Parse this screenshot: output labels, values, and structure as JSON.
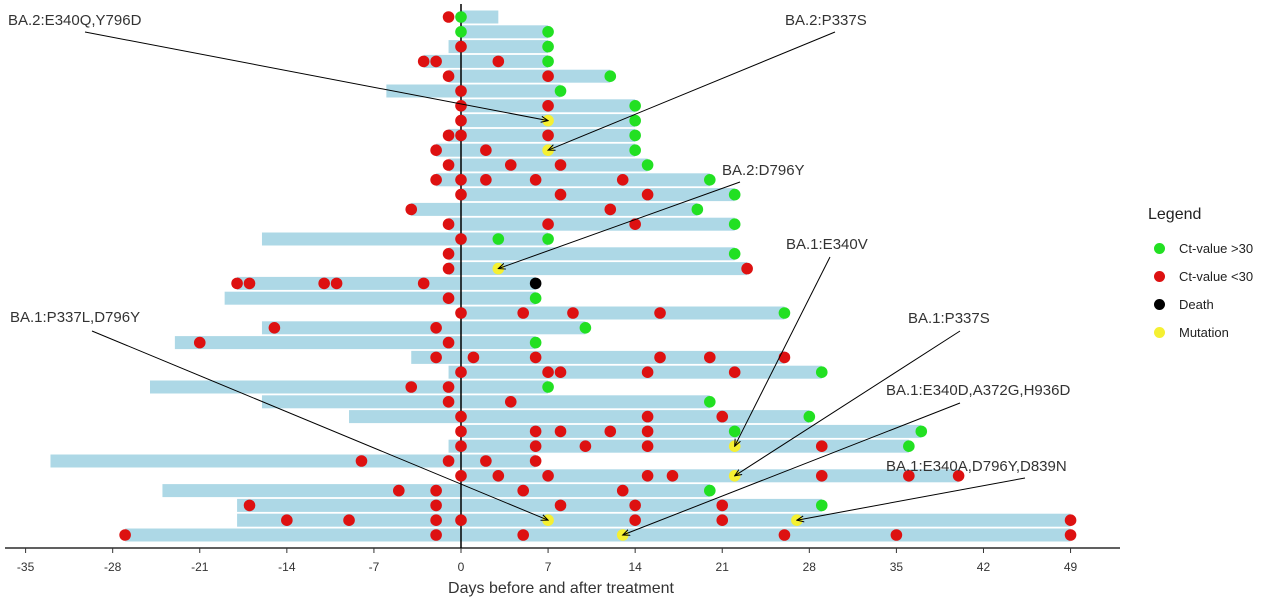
{
  "chart_data": {
    "type": "swimmer",
    "xlabel": "Days before and after treatment",
    "xlim": [
      -36,
      53
    ],
    "xticks": [
      -35,
      -28,
      -21,
      -14,
      -7,
      0,
      7,
      14,
      21,
      28,
      35,
      42,
      49
    ],
    "reference_line_x": 0,
    "grid": false,
    "legend": {
      "title": "Legend",
      "placement": "right",
      "items": [
        {
          "key": "g",
          "label": "Ct-value >30",
          "color": "#22e022"
        },
        {
          "key": "r",
          "label": "Ct-value <30",
          "color": "#dd1111"
        },
        {
          "key": "b",
          "label": "Death",
          "color": "#000000"
        },
        {
          "key": "y",
          "label": "Mutation",
          "color": "#f5f032"
        }
      ]
    },
    "bar_color": "#add8e6",
    "rows": [
      {
        "start": 0,
        "end": 3,
        "events": [
          [
            -1,
            "r"
          ],
          [
            0,
            "g"
          ]
        ]
      },
      {
        "start": 0,
        "end": 7,
        "events": [
          [
            0,
            "g"
          ],
          [
            7,
            "g"
          ]
        ]
      },
      {
        "start": -1,
        "end": 7,
        "events": [
          [
            0,
            "r"
          ],
          [
            7,
            "g"
          ]
        ]
      },
      {
        "start": -3,
        "end": 7,
        "events": [
          [
            -3,
            "r"
          ],
          [
            -2,
            "r"
          ],
          [
            3,
            "r"
          ],
          [
            7,
            "g"
          ]
        ]
      },
      {
        "start": -1,
        "end": 12,
        "events": [
          [
            -1,
            "r"
          ],
          [
            7,
            "r"
          ],
          [
            12,
            "g"
          ]
        ]
      },
      {
        "start": -6,
        "end": 8,
        "events": [
          [
            0,
            "r"
          ],
          [
            8,
            "g"
          ]
        ]
      },
      {
        "start": 0,
        "end": 14,
        "events": [
          [
            0,
            "r"
          ],
          [
            7,
            "r"
          ],
          [
            14,
            "g"
          ]
        ]
      },
      {
        "start": 0,
        "end": 14,
        "events": [
          [
            0,
            "r"
          ],
          [
            7,
            "y"
          ],
          [
            14,
            "g"
          ]
        ]
      },
      {
        "start": -1,
        "end": 14,
        "events": [
          [
            -1,
            "r"
          ],
          [
            0,
            "r"
          ],
          [
            7,
            "r"
          ],
          [
            14,
            "g"
          ]
        ]
      },
      {
        "start": -2,
        "end": 14,
        "events": [
          [
            -2,
            "r"
          ],
          [
            2,
            "r"
          ],
          [
            7,
            "y"
          ],
          [
            14,
            "g"
          ]
        ]
      },
      {
        "start": -1,
        "end": 15,
        "events": [
          [
            -1,
            "r"
          ],
          [
            4,
            "r"
          ],
          [
            8,
            "r"
          ],
          [
            15,
            "g"
          ]
        ]
      },
      {
        "start": -2,
        "end": 20,
        "events": [
          [
            -2,
            "r"
          ],
          [
            0,
            "r"
          ],
          [
            2,
            "r"
          ],
          [
            6,
            "r"
          ],
          [
            13,
            "r"
          ],
          [
            20,
            "g"
          ]
        ]
      },
      {
        "start": 0,
        "end": 22,
        "events": [
          [
            0,
            "r"
          ],
          [
            8,
            "r"
          ],
          [
            15,
            "r"
          ],
          [
            22,
            "g"
          ]
        ]
      },
      {
        "start": -4,
        "end": 19,
        "events": [
          [
            -4,
            "r"
          ],
          [
            12,
            "r"
          ],
          [
            19,
            "g"
          ]
        ]
      },
      {
        "start": -1,
        "end": 22,
        "events": [
          [
            -1,
            "r"
          ],
          [
            7,
            "r"
          ],
          [
            14,
            "r"
          ],
          [
            22,
            "g"
          ]
        ]
      },
      {
        "start": -16,
        "end": 7,
        "events": [
          [
            0,
            "r"
          ],
          [
            3,
            "g"
          ],
          [
            7,
            "g"
          ]
        ]
      },
      {
        "start": -1,
        "end": 22,
        "events": [
          [
            -1,
            "r"
          ],
          [
            22,
            "g"
          ]
        ]
      },
      {
        "start": -1,
        "end": 23,
        "events": [
          [
            -1,
            "r"
          ],
          [
            3,
            "y"
          ],
          [
            23,
            "r"
          ]
        ]
      },
      {
        "start": -18,
        "end": 6,
        "events": [
          [
            -18,
            "r"
          ],
          [
            -17,
            "r"
          ],
          [
            -11,
            "r"
          ],
          [
            -10,
            "r"
          ],
          [
            -3,
            "r"
          ],
          [
            6,
            "b"
          ]
        ]
      },
      {
        "start": -19,
        "end": 6,
        "events": [
          [
            -1,
            "r"
          ],
          [
            6,
            "g"
          ]
        ]
      },
      {
        "start": 0,
        "end": 26,
        "events": [
          [
            0,
            "r"
          ],
          [
            5,
            "r"
          ],
          [
            9,
            "r"
          ],
          [
            16,
            "r"
          ],
          [
            26,
            "g"
          ]
        ]
      },
      {
        "start": -16,
        "end": 10,
        "events": [
          [
            -15,
            "r"
          ],
          [
            -2,
            "r"
          ],
          [
            10,
            "g"
          ]
        ]
      },
      {
        "start": -23,
        "end": 6,
        "events": [
          [
            -21,
            "r"
          ],
          [
            -1,
            "r"
          ],
          [
            6,
            "g"
          ]
        ]
      },
      {
        "start": -4,
        "end": 26,
        "events": [
          [
            -2,
            "r"
          ],
          [
            1,
            "r"
          ],
          [
            6,
            "r"
          ],
          [
            16,
            "r"
          ],
          [
            20,
            "r"
          ],
          [
            26,
            "r"
          ]
        ]
      },
      {
        "start": -1,
        "end": 29,
        "events": [
          [
            0,
            "r"
          ],
          [
            7,
            "r"
          ],
          [
            8,
            "r"
          ],
          [
            15,
            "r"
          ],
          [
            22,
            "r"
          ],
          [
            29,
            "g"
          ]
        ]
      },
      {
        "start": -25,
        "end": 7,
        "events": [
          [
            -4,
            "r"
          ],
          [
            -1,
            "r"
          ],
          [
            7,
            "g"
          ]
        ]
      },
      {
        "start": -16,
        "end": 20,
        "events": [
          [
            -1,
            "r"
          ],
          [
            4,
            "r"
          ],
          [
            20,
            "g"
          ]
        ]
      },
      {
        "start": -9,
        "end": 28,
        "events": [
          [
            0,
            "r"
          ],
          [
            15,
            "r"
          ],
          [
            21,
            "r"
          ],
          [
            28,
            "g"
          ]
        ]
      },
      {
        "start": 0,
        "end": 37,
        "events": [
          [
            0,
            "r"
          ],
          [
            6,
            "r"
          ],
          [
            8,
            "r"
          ],
          [
            12,
            "r"
          ],
          [
            15,
            "r"
          ],
          [
            22,
            "g"
          ],
          [
            37,
            "g"
          ]
        ]
      },
      {
        "start": -1,
        "end": 36,
        "events": [
          [
            0,
            "r"
          ],
          [
            6,
            "r"
          ],
          [
            10,
            "r"
          ],
          [
            15,
            "r"
          ],
          [
            22,
            "y"
          ],
          [
            29,
            "r"
          ],
          [
            36,
            "g"
          ]
        ]
      },
      {
        "start": -33,
        "end": 6,
        "events": [
          [
            -8,
            "r"
          ],
          [
            -1,
            "r"
          ],
          [
            2,
            "r"
          ],
          [
            6,
            "r"
          ]
        ]
      },
      {
        "start": 0,
        "end": 40,
        "events": [
          [
            0,
            "r"
          ],
          [
            3,
            "r"
          ],
          [
            7,
            "r"
          ],
          [
            15,
            "r"
          ],
          [
            17,
            "r"
          ],
          [
            22,
            "y"
          ],
          [
            29,
            "r"
          ],
          [
            36,
            "r"
          ],
          [
            40,
            "r"
          ]
        ]
      },
      {
        "start": -24,
        "end": 20,
        "events": [
          [
            -5,
            "r"
          ],
          [
            -2,
            "r"
          ],
          [
            5,
            "r"
          ],
          [
            13,
            "r"
          ],
          [
            20,
            "g"
          ]
        ]
      },
      {
        "start": -18,
        "end": 29,
        "events": [
          [
            -17,
            "r"
          ],
          [
            -2,
            "r"
          ],
          [
            8,
            "r"
          ],
          [
            14,
            "r"
          ],
          [
            21,
            "r"
          ],
          [
            29,
            "g"
          ]
        ]
      },
      {
        "start": -18,
        "end": 49,
        "events": [
          [
            -14,
            "r"
          ],
          [
            -9,
            "r"
          ],
          [
            -2,
            "r"
          ],
          [
            0,
            "r"
          ],
          [
            7,
            "y"
          ],
          [
            14,
            "r"
          ],
          [
            21,
            "r"
          ],
          [
            27,
            "y"
          ],
          [
            49,
            "r"
          ]
        ]
      },
      {
        "start": -27,
        "end": 49,
        "events": [
          [
            -27,
            "r"
          ],
          [
            -2,
            "r"
          ],
          [
            5,
            "r"
          ],
          [
            13,
            "y"
          ],
          [
            26,
            "r"
          ],
          [
            35,
            "r"
          ],
          [
            49,
            "r"
          ]
        ]
      }
    ],
    "annotations": [
      {
        "text": "BA.2:E340Q,Y796D",
        "row": 8,
        "day": 7
      },
      {
        "text": "BA.2:P337S",
        "row": 10,
        "day": 7
      },
      {
        "text": "BA.2:D796Y",
        "row": 18,
        "day": 3
      },
      {
        "text": "BA.1:E340V",
        "row": 30,
        "day": 22
      },
      {
        "text": "BA.1:P337L,D796Y",
        "row": 35,
        "day": 7
      },
      {
        "text": "BA.1:P337S",
        "row": 32,
        "day": 22
      },
      {
        "text": "BA.1:E340D,A372G,H936D",
        "row": 36,
        "day": 13
      },
      {
        "text": "BA.1:E340A,D796Y,D839N",
        "row": 35,
        "day": 27
      }
    ]
  }
}
